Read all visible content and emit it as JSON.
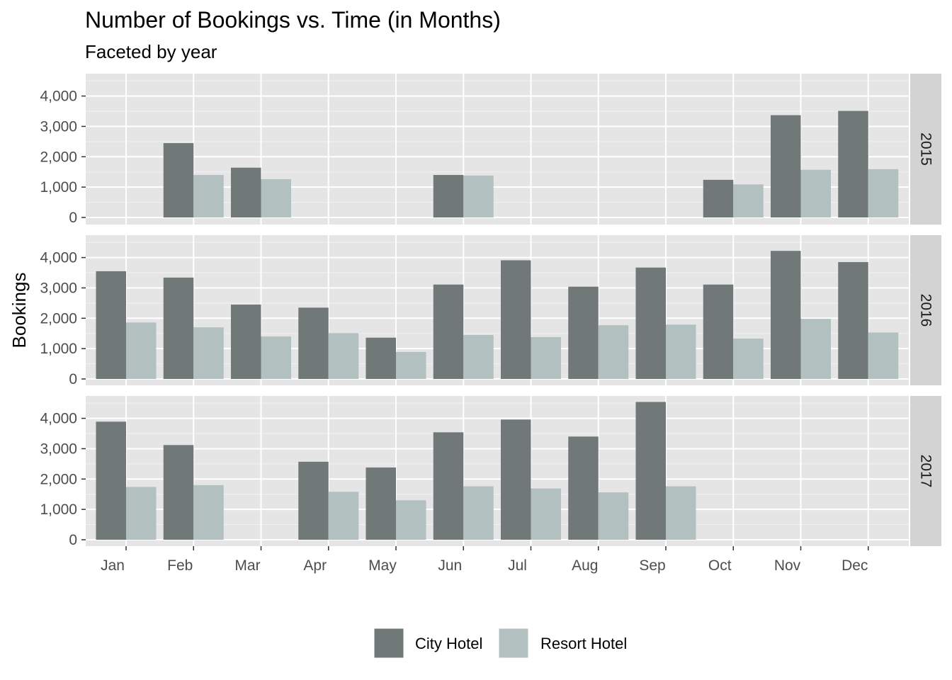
{
  "chart_data": {
    "type": "bar",
    "title": "Number of Bookings vs. Time (in Months)",
    "subtitle": "Faceted by year",
    "xlabel": "",
    "ylabel": "Bookings",
    "ylim": [
      0,
      4700
    ],
    "y_ticks": [
      0,
      1000,
      2000,
      3000,
      4000
    ],
    "y_tick_labels": [
      "0",
      "1,000",
      "2,000",
      "3,000",
      "4,000"
    ],
    "categories": [
      "Jan",
      "Feb",
      "Mar",
      "Apr",
      "May",
      "Jun",
      "Jul",
      "Aug",
      "Sep",
      "Oct",
      "Nov",
      "Dec"
    ],
    "grid": true,
    "legend_position": "bottom",
    "series_names": [
      "City Hotel",
      "Resort Hotel"
    ],
    "series_colors": [
      "#707977",
      "#b3c0c0"
    ],
    "panel_background": "#e5e5e5",
    "strip_background": "#d3d3d3",
    "facets": [
      {
        "label": "2015",
        "series": [
          {
            "name": "City Hotel",
            "values": [
              null,
              2450,
              1640,
              null,
              null,
              1400,
              null,
              null,
              null,
              1240,
              3370,
              3510
            ]
          },
          {
            "name": "Resort Hotel",
            "values": [
              null,
              1400,
              1260,
              null,
              null,
              1380,
              null,
              null,
              null,
              1090,
              1570,
              1590
            ]
          }
        ]
      },
      {
        "label": "2016",
        "series": [
          {
            "name": "City Hotel",
            "values": [
              3550,
              3340,
              2450,
              2350,
              1360,
              3110,
              3910,
              3040,
              3670,
              3110,
              4220,
              3850
            ]
          },
          {
            "name": "Resort Hotel",
            "values": [
              1860,
              1700,
              1400,
              1510,
              890,
              1450,
              1380,
              1770,
              1790,
              1330,
              1980,
              1530
            ]
          }
        ]
      },
      {
        "label": "2017",
        "series": [
          {
            "name": "City Hotel",
            "values": [
              3890,
              3120,
              null,
              2570,
              2380,
              3540,
              3960,
              3400,
              4540,
              null,
              null,
              null
            ]
          },
          {
            "name": "Resort Hotel",
            "values": [
              1740,
              1800,
              null,
              1580,
              1300,
              1760,
              1690,
              1560,
              1760,
              null,
              null,
              null
            ]
          }
        ]
      }
    ]
  }
}
